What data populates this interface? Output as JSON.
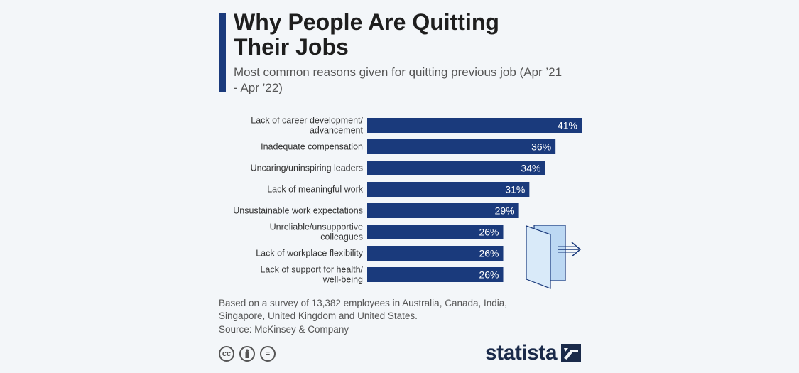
{
  "header": {
    "title": "Why People Are Quitting Their Jobs",
    "subtitle": "Most common reasons given for quitting previous job (Apr ’21 - Apr ’22)"
  },
  "chart_data": {
    "type": "bar",
    "orientation": "horizontal",
    "title": "Why People Are Quitting Their Jobs",
    "subtitle": "Most common reasons given for quitting previous job (Apr ’21 - Apr ’22)",
    "categories": [
      [
        "Lack of career development/",
        "advancement"
      ],
      [
        "Inadequate compensation"
      ],
      [
        "Uncaring/uninspiring leaders"
      ],
      [
        "Lack of meaningful work"
      ],
      [
        "Unsustainable work expectations"
      ],
      [
        "Unreliable/unsupportive",
        "colleagues"
      ],
      [
        "Lack of workplace flexibility"
      ],
      [
        "Lack of support for health/",
        "well-being"
      ]
    ],
    "values": [
      41,
      36,
      34,
      31,
      29,
      26,
      26,
      26
    ],
    "value_labels": [
      "41%",
      "36%",
      "34%",
      "31%",
      "29%",
      "26%",
      "26%",
      "26%"
    ],
    "xlim": [
      0,
      41
    ],
    "grid": false,
    "bar_color": "#1a3a7c",
    "label_color": "#ffffff"
  },
  "footer": {
    "note": "Based on a survey of 13,382 employees in Australia, Canada, India, Singapore, United Kingdom and United States.",
    "source": "Source: McKinsey & Company",
    "license_icons": [
      "cc",
      "person",
      "="
    ],
    "logo": "statista"
  },
  "decoration": {
    "icon": "door-exit-icon"
  },
  "colors": {
    "accent": "#1a3a7c",
    "background": "#f3f6f9",
    "door": "#bcd8f3"
  }
}
